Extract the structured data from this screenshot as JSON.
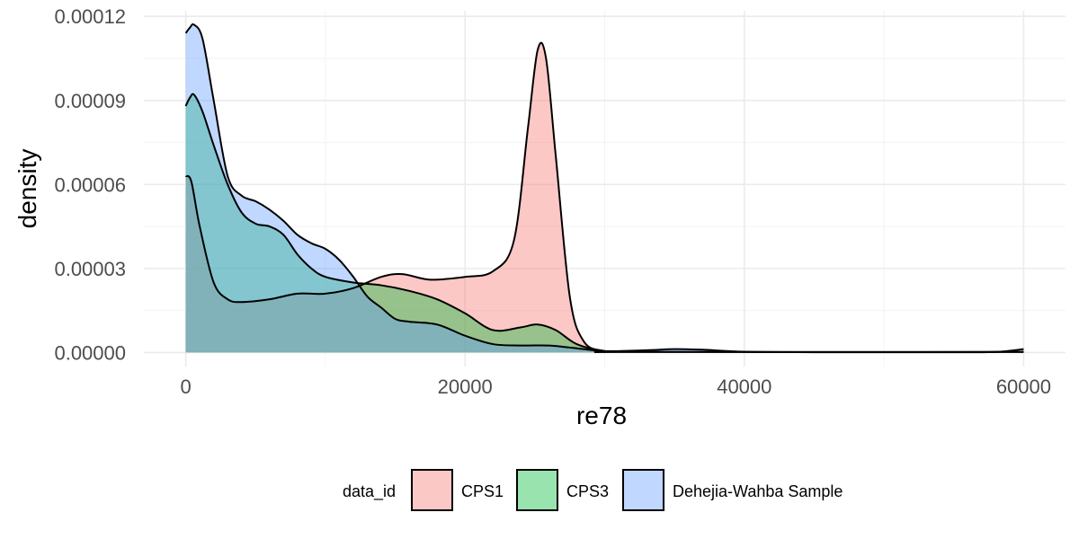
{
  "chart_data": {
    "type": "area",
    "chart_subtype": "density",
    "title": "",
    "xlabel": "re78",
    "ylabel": "density",
    "xlim": [
      -3000,
      63000
    ],
    "ylim": [
      -5e-06,
      0.000122
    ],
    "x_ticks": [
      0,
      20000,
      40000,
      60000
    ],
    "x_tick_labels": [
      "0",
      "20000",
      "40000",
      "60000"
    ],
    "y_ticks": [
      0,
      3e-05,
      6e-05,
      9e-05,
      0.00012
    ],
    "y_tick_labels": [
      "0.00000",
      "0.00003",
      "0.00006",
      "0.00009",
      "0.00012"
    ],
    "grid": true,
    "legend": {
      "title": "data_id",
      "position": "bottom"
    },
    "series": [
      {
        "name": "CPS1",
        "color": "#F8766D",
        "points": [
          [
            0,
            6.3e-05
          ],
          [
            400,
            6.1e-05
          ],
          [
            1000,
            4.5e-05
          ],
          [
            2000,
            2.5e-05
          ],
          [
            3000,
            1.9e-05
          ],
          [
            4000,
            1.8e-05
          ],
          [
            6000,
            1.9e-05
          ],
          [
            8000,
            2.1e-05
          ],
          [
            10000,
            2.1e-05
          ],
          [
            12000,
            2.3e-05
          ],
          [
            14000,
            2.7e-05
          ],
          [
            15500,
            2.8e-05
          ],
          [
            17500,
            2.6e-05
          ],
          [
            20000,
            2.7e-05
          ],
          [
            22000,
            2.9e-05
          ],
          [
            23500,
            4e-05
          ],
          [
            24500,
            8e-05
          ],
          [
            25200,
            0.000108
          ],
          [
            25800,
            0.000105
          ],
          [
            26500,
            7e-05
          ],
          [
            27500,
            2e-05
          ],
          [
            28500,
            4e-06
          ],
          [
            30000,
            5e-07
          ],
          [
            32000,
            2e-07
          ],
          [
            60000,
            2e-07
          ]
        ]
      },
      {
        "name": "CPS3",
        "color": "#00BA38",
        "points": [
          [
            0,
            8.8e-05
          ],
          [
            300,
            9.1e-05
          ],
          [
            600,
            9.2e-05
          ],
          [
            1200,
            8.6e-05
          ],
          [
            2000,
            7.4e-05
          ],
          [
            3000,
            6e-05
          ],
          [
            4000,
            5e-05
          ],
          [
            5000,
            4.6e-05
          ],
          [
            6000,
            4.5e-05
          ],
          [
            7000,
            4.2e-05
          ],
          [
            8000,
            3.5e-05
          ],
          [
            9000,
            3e-05
          ],
          [
            10000,
            2.7e-05
          ],
          [
            12000,
            2.5e-05
          ],
          [
            14000,
            2.4e-05
          ],
          [
            16000,
            2.2e-05
          ],
          [
            18000,
            1.9e-05
          ],
          [
            20000,
            1.4e-05
          ],
          [
            22000,
            8e-06
          ],
          [
            24000,
            9e-06
          ],
          [
            25200,
            1e-05
          ],
          [
            26500,
            8e-06
          ],
          [
            28000,
            3e-06
          ],
          [
            30000,
            5e-07
          ],
          [
            32000,
            2e-07
          ],
          [
            60000,
            2e-07
          ]
        ]
      },
      {
        "name": "Dehejia-Wahba Sample",
        "color": "#619CFF",
        "points": [
          [
            0,
            0.000114
          ],
          [
            300,
            0.000116
          ],
          [
            600,
            0.000117
          ],
          [
            1200,
            0.000112
          ],
          [
            2000,
            9e-05
          ],
          [
            3000,
            6.3e-05
          ],
          [
            4000,
            5.6e-05
          ],
          [
            5000,
            5.4e-05
          ],
          [
            6000,
            5.1e-05
          ],
          [
            7000,
            4.7e-05
          ],
          [
            8000,
            4.2e-05
          ],
          [
            9000,
            3.9e-05
          ],
          [
            10000,
            3.7e-05
          ],
          [
            11000,
            3.3e-05
          ],
          [
            12000,
            2.7e-05
          ],
          [
            13000,
            2e-05
          ],
          [
            14000,
            1.6e-05
          ],
          [
            15000,
            1.2e-05
          ],
          [
            16000,
            1.1e-05
          ],
          [
            18000,
            1e-05
          ],
          [
            20000,
            6e-06
          ],
          [
            22000,
            3e-06
          ],
          [
            24000,
            2.5e-06
          ],
          [
            26000,
            2.5e-06
          ],
          [
            28000,
            1.5e-06
          ],
          [
            30000,
            5e-07
          ],
          [
            33000,
            8e-07
          ],
          [
            35000,
            1.2e-06
          ],
          [
            37000,
            1e-06
          ],
          [
            40000,
            3e-07
          ],
          [
            45000,
            1e-07
          ],
          [
            55000,
            1e-07
          ],
          [
            58000,
            2e-07
          ],
          [
            60000,
            1.2e-06
          ]
        ]
      }
    ]
  }
}
